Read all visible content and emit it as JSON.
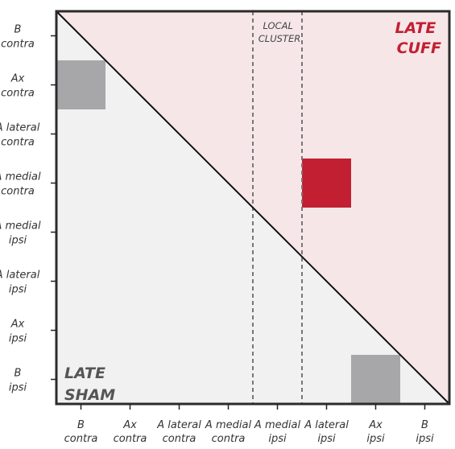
{
  "colors": {
    "upper_region": "#f6e6e8",
    "lower_region": "#f1f1f1",
    "frame": "#2b2b2b",
    "cuff_cell": "#c21f32",
    "sham_cell": "#a7a7aa",
    "cuff_label": "#c21f32",
    "sham_label": "#555555",
    "cluster_line": "#777777"
  },
  "regions": [
    {
      "name": "B contra",
      "lines": [
        "B",
        "contra"
      ]
    },
    {
      "name": "Ax contra",
      "lines": [
        "Ax",
        "contra"
      ]
    },
    {
      "name": "A lateral contra",
      "lines": [
        "A lateral",
        "contra"
      ]
    },
    {
      "name": "A medial contra",
      "lines": [
        "A medial",
        "contra"
      ]
    },
    {
      "name": "A medial ipsi",
      "lines": [
        "A medial",
        "ipsi"
      ]
    },
    {
      "name": "A lateral ipsi",
      "lines": [
        "A lateral",
        "ipsi"
      ]
    },
    {
      "name": "Ax ipsi",
      "lines": [
        "Ax",
        "ipsi"
      ]
    },
    {
      "name": "B ipsi",
      "lines": [
        "B",
        "ipsi"
      ]
    }
  ],
  "headings": {
    "late_cuff": [
      "LATE",
      "CUFF"
    ],
    "late_sham": [
      "LATE",
      "SHAM"
    ]
  },
  "local_cluster": {
    "label": [
      "LOCAL",
      "CLUSTER"
    ],
    "from_index": 4,
    "to_index": 5
  },
  "highlighted_cells": [
    {
      "group": "late_cuff",
      "row": 3,
      "col": 5
    },
    {
      "group": "late_sham",
      "row": 1,
      "col": 0
    },
    {
      "group": "late_sham",
      "row": 7,
      "col": 6
    }
  ]
}
